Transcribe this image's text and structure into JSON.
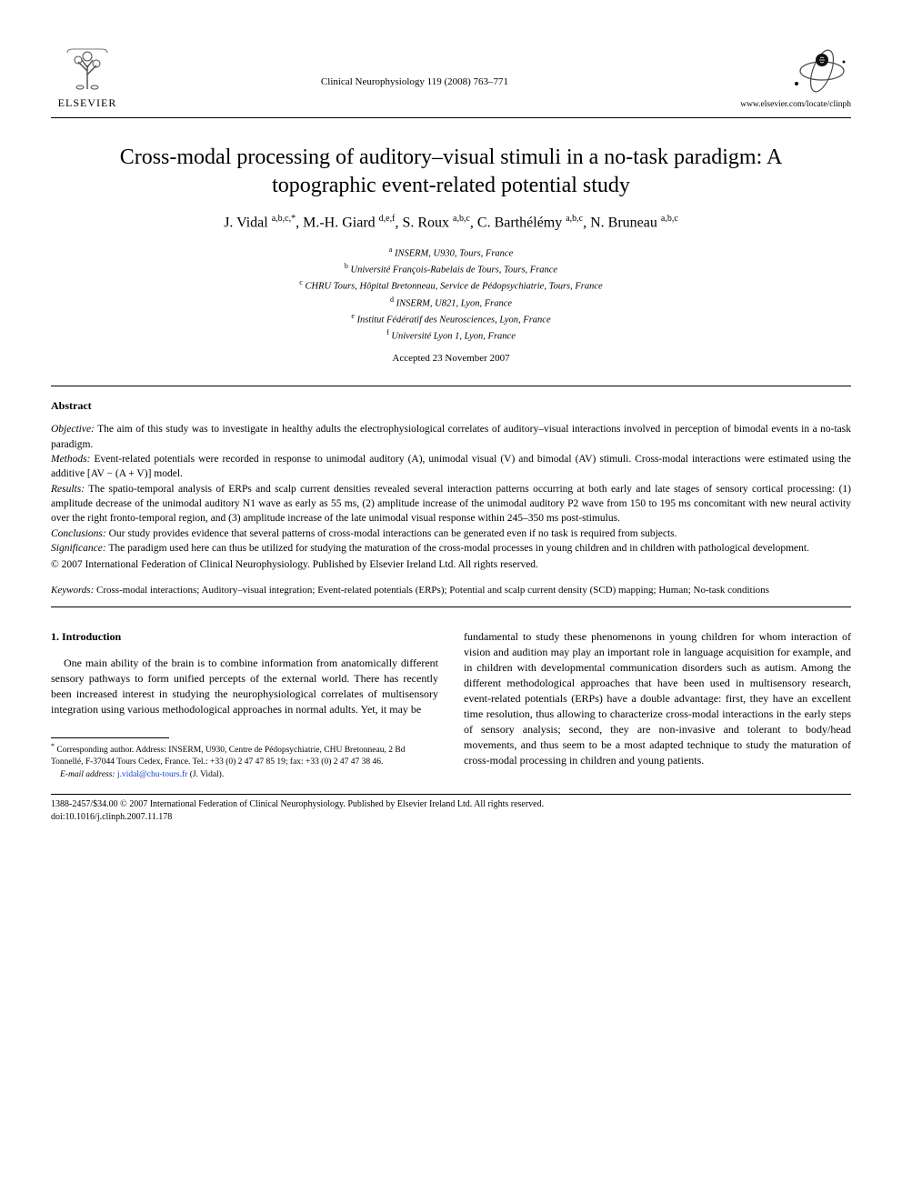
{
  "header": {
    "publisher_name": "ELSEVIER",
    "journal_ref": "Clinical Neurophysiology 119 (2008) 763–771",
    "journal_url": "www.elsevier.com/locate/clinph"
  },
  "title": "Cross-modal processing of auditory–visual stimuli in a no-task paradigm: A topographic event-related potential study",
  "authors_html": "J. Vidal <sup>a,b,c,*</sup>, M.-H. Giard <sup>d,e,f</sup>, S. Roux <sup>a,b,c</sup>, C. Barthélémy <sup>a,b,c</sup>, N. Bruneau <sup>a,b,c</sup>",
  "affiliations": [
    {
      "sup": "a",
      "text": "INSERM, U930, Tours, France"
    },
    {
      "sup": "b",
      "text": "Université François-Rabelais de Tours, Tours, France"
    },
    {
      "sup": "c",
      "text": "CHRU Tours, Hôpital Bretonneau, Service de Pédopsychiatrie, Tours, France"
    },
    {
      "sup": "d",
      "text": "INSERM, U821, Lyon, France"
    },
    {
      "sup": "e",
      "text": "Institut Fédératif des Neurosciences, Lyon, France"
    },
    {
      "sup": "f",
      "text": "Université Lyon 1, Lyon, France"
    }
  ],
  "accepted": "Accepted 23 November 2007",
  "abstract": {
    "heading": "Abstract",
    "objective_label": "Objective:",
    "objective": "The aim of this study was to investigate in healthy adults the electrophysiological correlates of auditory–visual interactions involved in perception of bimodal events in a no-task paradigm.",
    "methods_label": "Methods:",
    "methods": "Event-related potentials were recorded in response to unimodal auditory (A), unimodal visual (V) and bimodal (AV) stimuli. Cross-modal interactions were estimated using the additive [AV − (A + V)] model.",
    "results_label": "Results:",
    "results": "The spatio-temporal analysis of ERPs and scalp current densities revealed several interaction patterns occurring at both early and late stages of sensory cortical processing: (1) amplitude decrease of the unimodal auditory N1 wave as early as 55 ms, (2) amplitude increase of the unimodal auditory P2 wave from 150 to 195 ms concomitant with new neural activity over the right fronto-temporal region, and (3) amplitude increase of the late unimodal visual response within 245–350 ms post-stimulus.",
    "conclusions_label": "Conclusions:",
    "conclusions": "Our study provides evidence that several patterns of cross-modal interactions can be generated even if no task is required from subjects.",
    "significance_label": "Significance:",
    "significance": "The paradigm used here can thus be utilized for studying the maturation of the cross-modal processes in young children and in children with pathological development.",
    "copyright": "© 2007 International Federation of Clinical Neurophysiology. Published by Elsevier Ireland Ltd. All rights reserved."
  },
  "keywords_label": "Keywords:",
  "keywords": "Cross-modal interactions; Auditory–visual integration; Event-related potentials (ERPs); Potential and scalp current density (SCD) mapping; Human; No-task conditions",
  "section1": {
    "heading": "1. Introduction",
    "col1": "One main ability of the brain is to combine information from anatomically different sensory pathways to form unified percepts of the external world. There has recently been increased interest in studying the neurophysiological correlates of multisensory integration using various methodological approaches in normal adults. Yet, it may be",
    "col2": "fundamental to study these phenomenons in young children for whom interaction of vision and audition may play an important role in language acquisition for example, and in children with developmental communication disorders such as autism. Among the different methodological approaches that have been used in multisensory research, event-related potentials (ERPs) have a double advantage: first, they have an excellent time resolution, thus allowing to characterize cross-modal interactions in the early steps of sensory analysis; second, they are non-invasive and tolerant to body/head movements, and thus seem to be a most adapted technique to study the maturation of cross-modal processing in children and young patients."
  },
  "footnote": {
    "corr": "Corresponding author. Address: INSERM, U930, Centre de Pédopsychiatrie, CHU Bretonneau, 2 Bd Tonnellé, F-37044 Tours Cedex, France. Tel.: +33 (0) 2 47 47 85 19; fax: +33 (0) 2 47 47 38 46.",
    "email_label": "E-mail address:",
    "email": "j.vidal@chu-tours.fr",
    "email_tail": "(J. Vidal)."
  },
  "footer": {
    "line1": "1388-2457/$34.00 © 2007 International Federation of Clinical Neurophysiology. Published by Elsevier Ireland Ltd. All rights reserved.",
    "line2": "doi:10.1016/j.clinph.2007.11.178"
  },
  "colors": {
    "text": "#000000",
    "background": "#ffffff",
    "link": "#1040cc",
    "logo_orange": "#e8730a",
    "logo_gray": "#4a4a4a"
  }
}
